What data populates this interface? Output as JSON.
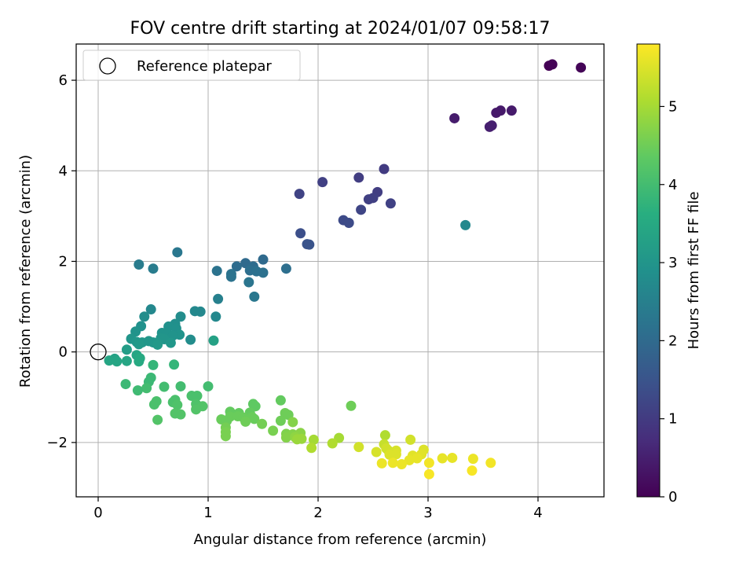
{
  "chart_data": {
    "type": "scatter",
    "title": "FOV centre drift starting at 2024/01/07 09:58:17",
    "xlabel": "Angular distance from reference (arcmin)",
    "ylabel": "Rotation from reference (arcmin)",
    "xlim": [
      -0.2,
      4.6
    ],
    "ylim": [
      -3.2,
      6.8
    ],
    "xticks": [
      0,
      1,
      2,
      3,
      4
    ],
    "xtick_labels": [
      "0",
      "1",
      "2",
      "3",
      "4"
    ],
    "yticks": [
      -2,
      0,
      2,
      4,
      6
    ],
    "ytick_labels": [
      "−2",
      "0",
      "2",
      "4",
      "6"
    ],
    "grid": true,
    "legend": {
      "position": "top-left",
      "label": "Reference platepar",
      "marker": "open-circle",
      "point": {
        "x": 0,
        "y": 0
      }
    },
    "colorbar": {
      "label": "Hours from first FF file",
      "colormap": "viridis",
      "range": [
        0,
        5.8
      ],
      "ticks": [
        0,
        1,
        2,
        3,
        4,
        5
      ],
      "tick_labels": [
        "0",
        "1",
        "2",
        "3",
        "4",
        "5"
      ]
    },
    "points": [
      {
        "x": 4.1,
        "y": 6.32,
        "t": 0.0
      },
      {
        "x": 4.13,
        "y": 6.35,
        "t": 0.03
      },
      {
        "x": 4.39,
        "y": 6.28,
        "t": 0.06
      },
      {
        "x": 3.24,
        "y": 5.16,
        "t": 0.45
      },
      {
        "x": 3.56,
        "y": 4.97,
        "t": 0.5
      },
      {
        "x": 3.58,
        "y": 5.0,
        "t": 0.5
      },
      {
        "x": 3.62,
        "y": 5.28,
        "t": 0.4
      },
      {
        "x": 3.66,
        "y": 5.33,
        "t": 0.4
      },
      {
        "x": 3.76,
        "y": 5.33,
        "t": 0.42
      },
      {
        "x": 2.6,
        "y": 4.04,
        "t": 1.0
      },
      {
        "x": 2.37,
        "y": 3.85,
        "t": 1.05
      },
      {
        "x": 2.04,
        "y": 3.75,
        "t": 1.1
      },
      {
        "x": 1.83,
        "y": 3.49,
        "t": 1.15
      },
      {
        "x": 2.54,
        "y": 3.53,
        "t": 1.05
      },
      {
        "x": 2.5,
        "y": 3.4,
        "t": 1.1
      },
      {
        "x": 2.46,
        "y": 3.37,
        "t": 1.1
      },
      {
        "x": 2.66,
        "y": 3.28,
        "t": 1.12
      },
      {
        "x": 2.39,
        "y": 3.14,
        "t": 1.2
      },
      {
        "x": 2.23,
        "y": 2.91,
        "t": 1.3
      },
      {
        "x": 2.28,
        "y": 2.85,
        "t": 1.32
      },
      {
        "x": 3.34,
        "y": 2.8,
        "t": 2.7
      },
      {
        "x": 1.84,
        "y": 2.62,
        "t": 1.4
      },
      {
        "x": 1.9,
        "y": 2.38,
        "t": 1.5
      },
      {
        "x": 1.92,
        "y": 2.37,
        "t": 1.5
      },
      {
        "x": 0.72,
        "y": 2.2,
        "t": 2.3
      },
      {
        "x": 1.5,
        "y": 2.04,
        "t": 2.0
      },
      {
        "x": 1.34,
        "y": 1.96,
        "t": 2.0
      },
      {
        "x": 0.37,
        "y": 1.93,
        "t": 2.4
      },
      {
        "x": 1.26,
        "y": 1.89,
        "t": 2.05
      },
      {
        "x": 1.41,
        "y": 1.89,
        "t": 2.05
      },
      {
        "x": 0.5,
        "y": 1.84,
        "t": 2.4
      },
      {
        "x": 1.71,
        "y": 1.84,
        "t": 2.1
      },
      {
        "x": 1.08,
        "y": 1.79,
        "t": 2.2
      },
      {
        "x": 1.38,
        "y": 1.8,
        "t": 2.1
      },
      {
        "x": 1.44,
        "y": 1.78,
        "t": 2.15
      },
      {
        "x": 1.5,
        "y": 1.75,
        "t": 2.15
      },
      {
        "x": 1.21,
        "y": 1.72,
        "t": 2.2
      },
      {
        "x": 1.21,
        "y": 1.66,
        "t": 2.2
      },
      {
        "x": 1.37,
        "y": 1.54,
        "t": 2.25
      },
      {
        "x": 1.42,
        "y": 1.22,
        "t": 2.3
      },
      {
        "x": 1.09,
        "y": 1.17,
        "t": 2.5
      },
      {
        "x": 0.48,
        "y": 0.94,
        "t": 2.7
      },
      {
        "x": 0.88,
        "y": 0.9,
        "t": 2.7
      },
      {
        "x": 0.93,
        "y": 0.89,
        "t": 2.7
      },
      {
        "x": 0.42,
        "y": 0.78,
        "t": 2.8
      },
      {
        "x": 0.75,
        "y": 0.78,
        "t": 2.8
      },
      {
        "x": 1.07,
        "y": 0.78,
        "t": 2.7
      },
      {
        "x": 0.7,
        "y": 0.62,
        "t": 2.85
      },
      {
        "x": 0.39,
        "y": 0.57,
        "t": 2.9
      },
      {
        "x": 0.64,
        "y": 0.56,
        "t": 2.9
      },
      {
        "x": 0.71,
        "y": 0.52,
        "t": 2.9
      },
      {
        "x": 0.34,
        "y": 0.45,
        "t": 2.95
      },
      {
        "x": 0.58,
        "y": 0.42,
        "t": 2.95
      },
      {
        "x": 0.63,
        "y": 0.4,
        "t": 2.95
      },
      {
        "x": 0.74,
        "y": 0.38,
        "t": 2.95
      },
      {
        "x": 0.68,
        "y": 0.36,
        "t": 2.95
      },
      {
        "x": 0.3,
        "y": 0.29,
        "t": 3.0
      },
      {
        "x": 0.57,
        "y": 0.3,
        "t": 3.0
      },
      {
        "x": 0.6,
        "y": 0.28,
        "t": 3.0
      },
      {
        "x": 0.84,
        "y": 0.27,
        "t": 2.8
      },
      {
        "x": 1.05,
        "y": 0.25,
        "t": 3.3
      },
      {
        "x": 0.46,
        "y": 0.24,
        "t": 3.05
      },
      {
        "x": 0.35,
        "y": 0.22,
        "t": 3.05
      },
      {
        "x": 0.4,
        "y": 0.21,
        "t": 3.05
      },
      {
        "x": 0.5,
        "y": 0.21,
        "t": 3.05
      },
      {
        "x": 0.54,
        "y": 0.2,
        "t": 3.05
      },
      {
        "x": 0.66,
        "y": 0.2,
        "t": 3.05
      },
      {
        "x": 0.37,
        "y": 0.17,
        "t": 3.1
      },
      {
        "x": 0.54,
        "y": 0.16,
        "t": 3.1
      },
      {
        "x": 0.26,
        "y": 0.05,
        "t": 3.2
      },
      {
        "x": 0.35,
        "y": -0.07,
        "t": 3.4
      },
      {
        "x": 0.15,
        "y": -0.15,
        "t": 3.3
      },
      {
        "x": 0.38,
        "y": -0.14,
        "t": 3.5
      },
      {
        "x": 0.1,
        "y": -0.19,
        "t": 3.4
      },
      {
        "x": 0.17,
        "y": -0.21,
        "t": 3.4
      },
      {
        "x": 0.26,
        "y": -0.2,
        "t": 3.4
      },
      {
        "x": 0.37,
        "y": -0.21,
        "t": 3.5
      },
      {
        "x": 0.5,
        "y": -0.29,
        "t": 3.8
      },
      {
        "x": 0.69,
        "y": -0.28,
        "t": 3.8
      },
      {
        "x": 0.48,
        "y": -0.57,
        "t": 3.9
      },
      {
        "x": 0.46,
        "y": -0.66,
        "t": 3.9
      },
      {
        "x": 0.25,
        "y": -0.71,
        "t": 3.9
      },
      {
        "x": 0.75,
        "y": -0.76,
        "t": 4.0
      },
      {
        "x": 0.6,
        "y": -0.77,
        "t": 4.0
      },
      {
        "x": 1.0,
        "y": -0.76,
        "t": 4.0
      },
      {
        "x": 0.44,
        "y": -0.8,
        "t": 4.0
      },
      {
        "x": 0.36,
        "y": -0.85,
        "t": 3.95
      },
      {
        "x": 0.85,
        "y": -0.97,
        "t": 4.1
      },
      {
        "x": 0.9,
        "y": -0.97,
        "t": 4.1
      },
      {
        "x": 0.7,
        "y": -1.06,
        "t": 4.1
      },
      {
        "x": 0.53,
        "y": -1.09,
        "t": 4.1
      },
      {
        "x": 0.68,
        "y": -1.11,
        "t": 4.1
      },
      {
        "x": 0.51,
        "y": -1.16,
        "t": 4.1
      },
      {
        "x": 0.72,
        "y": -1.17,
        "t": 4.15
      },
      {
        "x": 0.89,
        "y": -1.15,
        "t": 4.15
      },
      {
        "x": 0.95,
        "y": -1.2,
        "t": 4.2
      },
      {
        "x": 0.89,
        "y": -1.27,
        "t": 4.2
      },
      {
        "x": 0.7,
        "y": -1.36,
        "t": 4.2
      },
      {
        "x": 0.75,
        "y": -1.38,
        "t": 4.2
      },
      {
        "x": 0.54,
        "y": -1.5,
        "t": 4.2
      },
      {
        "x": 1.41,
        "y": -1.15,
        "t": 4.35
      },
      {
        "x": 1.43,
        "y": -1.2,
        "t": 4.35
      },
      {
        "x": 1.66,
        "y": -1.07,
        "t": 4.4
      },
      {
        "x": 2.3,
        "y": -1.19,
        "t": 4.5
      },
      {
        "x": 1.2,
        "y": -1.32,
        "t": 4.4
      },
      {
        "x": 1.28,
        "y": -1.35,
        "t": 4.4
      },
      {
        "x": 1.38,
        "y": -1.34,
        "t": 4.4
      },
      {
        "x": 1.7,
        "y": -1.35,
        "t": 4.5
      },
      {
        "x": 1.73,
        "y": -1.39,
        "t": 4.5
      },
      {
        "x": 1.2,
        "y": -1.43,
        "t": 4.45
      },
      {
        "x": 1.27,
        "y": -1.42,
        "t": 4.45
      },
      {
        "x": 1.32,
        "y": -1.45,
        "t": 4.45
      },
      {
        "x": 1.4,
        "y": -1.44,
        "t": 4.45
      },
      {
        "x": 1.12,
        "y": -1.49,
        "t": 4.45
      },
      {
        "x": 1.17,
        "y": -1.52,
        "t": 4.45
      },
      {
        "x": 1.42,
        "y": -1.48,
        "t": 4.45
      },
      {
        "x": 1.34,
        "y": -1.54,
        "t": 4.5
      },
      {
        "x": 1.66,
        "y": -1.52,
        "t": 4.5
      },
      {
        "x": 1.49,
        "y": -1.59,
        "t": 4.55
      },
      {
        "x": 1.77,
        "y": -1.55,
        "t": 4.7
      },
      {
        "x": 1.16,
        "y": -1.67,
        "t": 4.55
      },
      {
        "x": 1.59,
        "y": -1.74,
        "t": 4.6
      },
      {
        "x": 1.16,
        "y": -1.77,
        "t": 4.6
      },
      {
        "x": 1.71,
        "y": -1.81,
        "t": 4.65
      },
      {
        "x": 1.77,
        "y": -1.82,
        "t": 4.7
      },
      {
        "x": 1.84,
        "y": -1.79,
        "t": 4.75
      },
      {
        "x": 1.16,
        "y": -1.86,
        "t": 4.6
      },
      {
        "x": 1.71,
        "y": -1.89,
        "t": 4.7
      },
      {
        "x": 1.79,
        "y": -1.88,
        "t": 4.8
      },
      {
        "x": 1.81,
        "y": -1.93,
        "t": 4.9
      },
      {
        "x": 1.85,
        "y": -1.92,
        "t": 4.9
      },
      {
        "x": 1.96,
        "y": -1.94,
        "t": 5.0
      },
      {
        "x": 2.19,
        "y": -1.9,
        "t": 5.0
      },
      {
        "x": 2.61,
        "y": -1.84,
        "t": 5.1
      },
      {
        "x": 2.13,
        "y": -2.02,
        "t": 5.1
      },
      {
        "x": 1.94,
        "y": -2.12,
        "t": 5.1
      },
      {
        "x": 2.37,
        "y": -2.1,
        "t": 5.4
      },
      {
        "x": 2.6,
        "y": -2.04,
        "t": 5.3
      },
      {
        "x": 2.84,
        "y": -1.94,
        "t": 5.4
      },
      {
        "x": 2.62,
        "y": -2.13,
        "t": 5.4
      },
      {
        "x": 2.64,
        "y": -2.18,
        "t": 5.4
      },
      {
        "x": 2.71,
        "y": -2.18,
        "t": 5.45
      },
      {
        "x": 2.53,
        "y": -2.21,
        "t": 5.45
      },
      {
        "x": 2.65,
        "y": -2.27,
        "t": 5.5
      },
      {
        "x": 2.71,
        "y": -2.26,
        "t": 5.5
      },
      {
        "x": 2.96,
        "y": -2.16,
        "t": 5.5
      },
      {
        "x": 2.94,
        "y": -2.26,
        "t": 5.55
      },
      {
        "x": 2.86,
        "y": -2.29,
        "t": 5.55
      },
      {
        "x": 3.13,
        "y": -2.35,
        "t": 5.6
      },
      {
        "x": 3.22,
        "y": -2.34,
        "t": 5.6
      },
      {
        "x": 3.41,
        "y": -2.36,
        "t": 5.65
      },
      {
        "x": 2.83,
        "y": -2.39,
        "t": 5.6
      },
      {
        "x": 2.9,
        "y": -2.35,
        "t": 5.6
      },
      {
        "x": 2.58,
        "y": -2.46,
        "t": 5.65
      },
      {
        "x": 2.68,
        "y": -2.45,
        "t": 5.65
      },
      {
        "x": 2.76,
        "y": -2.48,
        "t": 5.65
      },
      {
        "x": 3.01,
        "y": -2.45,
        "t": 5.7
      },
      {
        "x": 3.57,
        "y": -2.45,
        "t": 5.7
      },
      {
        "x": 3.4,
        "y": -2.62,
        "t": 5.75
      },
      {
        "x": 3.01,
        "y": -2.7,
        "t": 5.75
      }
    ]
  }
}
